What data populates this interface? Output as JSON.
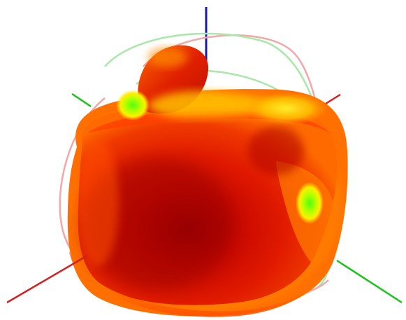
{
  "view": {
    "axes": [
      {
        "name": "x-axis",
        "color": "#d42020"
      },
      {
        "name": "y-axis",
        "color": "#18c418"
      },
      {
        "name": "z-axis",
        "color": "#1a1aa8"
      }
    ],
    "reference_circles": [
      {
        "name": "xz-plane-circle",
        "color": "#f0a8a8"
      },
      {
        "name": "yz-plane-circle",
        "color": "#a8e8a8"
      }
    ],
    "colormap": [
      "#a60000",
      "#e01800",
      "#ff5a00",
      "#ffa500",
      "#ffff00",
      "#50ff00"
    ]
  }
}
